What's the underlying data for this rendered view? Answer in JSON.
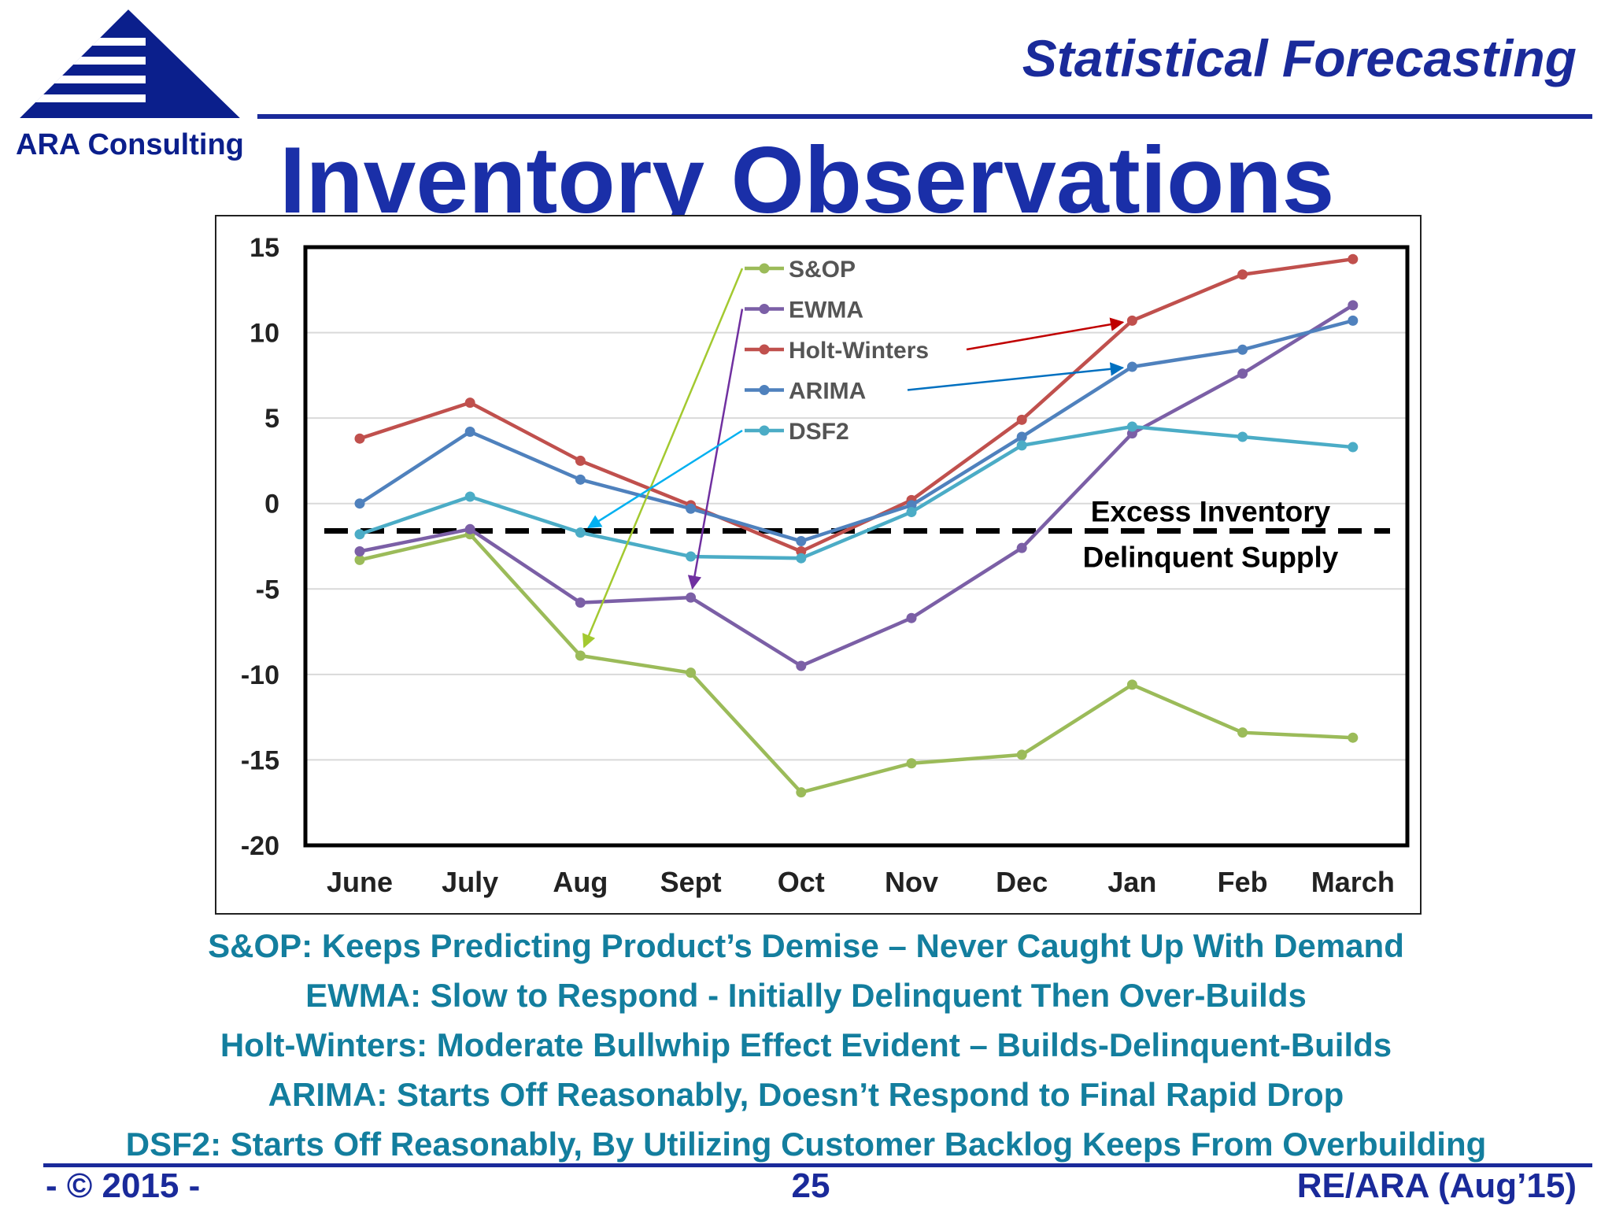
{
  "header": {
    "company_name": "ARA Consulting",
    "section_title": "Statistical Forecasting",
    "slide_title": "Inventory Observations"
  },
  "colors": {
    "brand_blue": "#1a2a9a",
    "note_teal": "#137e9e"
  },
  "chart_data": {
    "type": "line",
    "categories": [
      "June",
      "July",
      "Aug",
      "Sept",
      "Oct",
      "Nov",
      "Dec",
      "Jan",
      "Feb",
      "March"
    ],
    "ylim": [
      -20,
      15
    ],
    "yticks": [
      15,
      10,
      5,
      0,
      -5,
      -10,
      -15,
      -20
    ],
    "grid": true,
    "legend_position": "top-center",
    "series": [
      {
        "name": "S&OP",
        "color": "#9bbb59",
        "values": [
          -3.3,
          -1.8,
          -8.9,
          -9.9,
          -16.9,
          -15.2,
          -14.7,
          -10.6,
          -13.4,
          -13.7
        ]
      },
      {
        "name": "EWMA",
        "color": "#7b5fa6",
        "values": [
          -2.8,
          -1.5,
          -5.8,
          -5.5,
          -9.5,
          -6.7,
          -2.6,
          4.1,
          7.6,
          11.6
        ]
      },
      {
        "name": "Holt-Winters",
        "color": "#c0504d",
        "values": [
          3.8,
          5.9,
          2.5,
          -0.1,
          -2.8,
          0.2,
          4.9,
          10.7,
          13.4,
          14.3
        ]
      },
      {
        "name": "ARIMA",
        "color": "#4f81bd",
        "values": [
          0.0,
          4.2,
          1.4,
          -0.3,
          -2.2,
          -0.1,
          3.9,
          8.0,
          9.0,
          10.7
        ]
      },
      {
        "name": "DSF2",
        "color": "#4bacc6",
        "values": [
          -1.8,
          0.4,
          -1.7,
          -3.1,
          -3.2,
          -0.5,
          3.4,
          4.5,
          3.9,
          3.3
        ]
      }
    ],
    "threshold": {
      "value": -1.6,
      "label_above": "Excess Inventory",
      "label_below": "Delinquent Supply"
    },
    "annotations": [
      {
        "series": "S&OP",
        "points_to": "Aug",
        "color": "#a3c930"
      },
      {
        "series": "EWMA",
        "points_to": "Sept",
        "color": "#7030a0"
      },
      {
        "series": "Holt-Winters",
        "points_to": "Jan",
        "color": "#c00000"
      },
      {
        "series": "ARIMA",
        "points_to": "Jan",
        "color": "#0070c0"
      },
      {
        "series": "DSF2",
        "points_to": "Aug",
        "color": "#00b0f0"
      }
    ]
  },
  "notes": [
    "S&OP: Keeps Predicting Product’s Demise – Never Caught Up With Demand",
    "EWMA: Slow to Respond - Initially Delinquent Then Over-Builds",
    "Holt-Winters: Moderate Bullwhip Effect Evident – Builds-Delinquent-Builds",
    "ARIMA: Starts Off Reasonably, Doesn’t Respond to Final Rapid Drop",
    "DSF2: Starts Off Reasonably, By Utilizing Customer Backlog Keeps From Overbuilding"
  ],
  "footer": {
    "left": "- © 2015 -",
    "page_number": "25",
    "right": "RE/ARA (Aug’15)"
  }
}
